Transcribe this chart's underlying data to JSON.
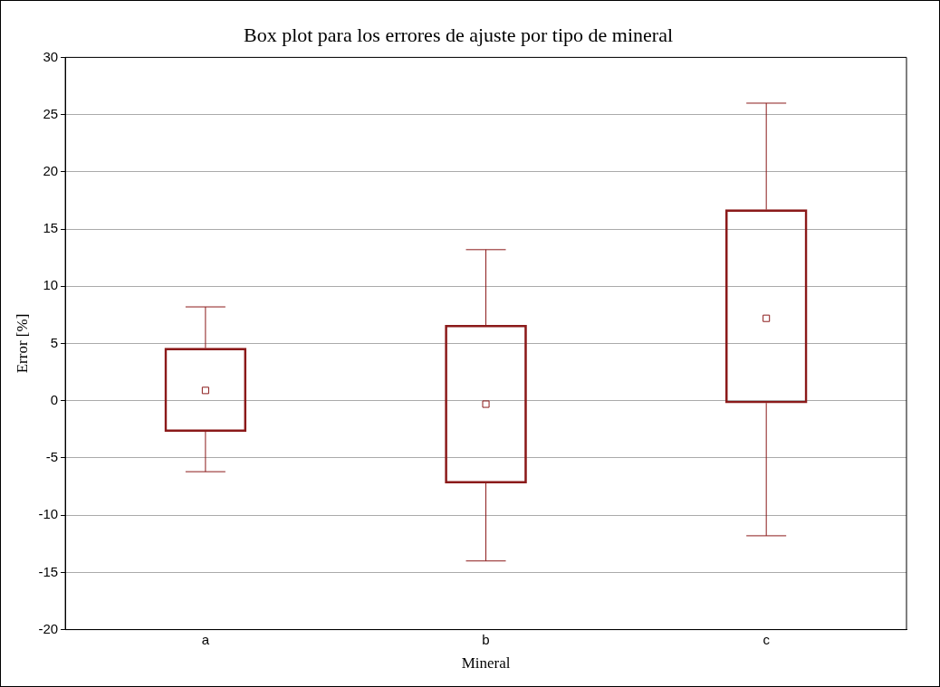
{
  "chart_data": {
    "type": "box",
    "title": "Box plot para los errores de ajuste por tipo de mineral",
    "xlabel": "Mineral",
    "ylabel": "Error [%]",
    "categories": [
      "a",
      "b",
      "c"
    ],
    "color": "#8b1a1a",
    "marker": "square",
    "boxes": [
      {
        "low": -6.2,
        "q1": -2.7,
        "median": 0.9,
        "q3": 4.6,
        "high": 8.2
      },
      {
        "low": -14,
        "q1": -7.2,
        "median": -0.3,
        "q3": 6.6,
        "high": 13.2
      },
      {
        "low": -11.8,
        "q1": -0.2,
        "median": 7.2,
        "q3": 16.7,
        "high": 26
      }
    ],
    "ylim": [
      -20,
      30
    ],
    "yticks": [
      -20,
      -15,
      -10,
      -5,
      0,
      5,
      10,
      15,
      20,
      25,
      30
    ],
    "grid": "y",
    "legend": false
  }
}
